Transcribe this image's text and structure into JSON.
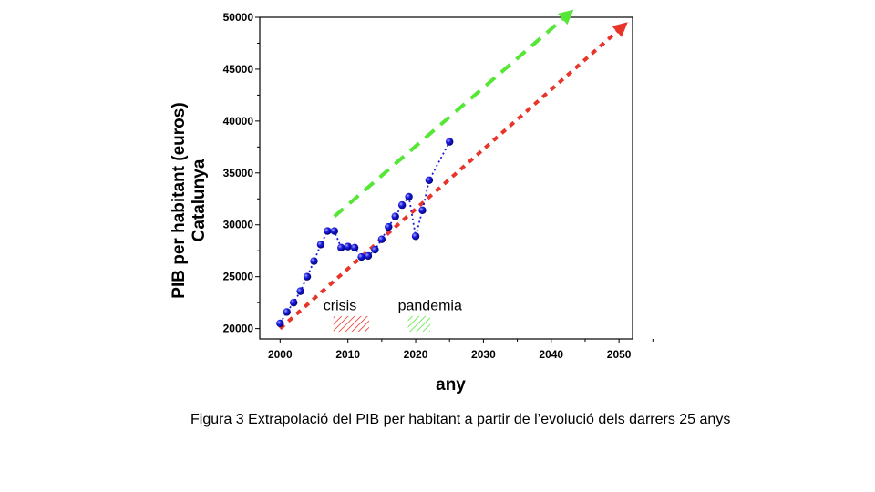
{
  "chart_data": {
    "type": "scatter",
    "title": "",
    "xlabel": "any",
    "ylabel_lines": [
      "PIB per habitant (euros)",
      "Catalunya"
    ],
    "xlim": [
      1997,
      2052
    ],
    "ylim": [
      19000,
      50000
    ],
    "x_ticks": [
      2000,
      2010,
      2020,
      2030,
      2040,
      2050
    ],
    "y_ticks": [
      20000,
      25000,
      30000,
      35000,
      40000,
      45000,
      50000
    ],
    "grid": false,
    "legend": "none",
    "series": [
      {
        "style": "points with dotted line",
        "color": "#1a1adf",
        "x": [
          2000,
          2001,
          2002,
          2003,
          2004,
          2005,
          2006,
          2007,
          2008,
          2009,
          2010,
          2011,
          2012,
          2013,
          2014,
          2015,
          2016,
          2017,
          2018,
          2019,
          2020,
          2021,
          2022,
          2025
        ],
        "y": [
          20500,
          21600,
          22500,
          23600,
          25000,
          26500,
          28100,
          29400,
          29400,
          27800,
          27900,
          27800,
          26900,
          27000,
          27600,
          28600,
          29800,
          30800,
          31900,
          32700,
          28900,
          31400,
          34300,
          38000
        ]
      }
    ],
    "trend_arrows": [
      {
        "color": "#e8352a",
        "style": "dotted",
        "x": [
          2000,
          2050
        ],
        "y": [
          20000,
          48800
        ]
      },
      {
        "color": "#55e636",
        "style": "dashed",
        "x": [
          2008,
          2042
        ],
        "y": [
          30800,
          50000
        ]
      }
    ],
    "annotations": [
      {
        "text": "crisis",
        "x": 2008,
        "y": 22300,
        "hatch_range": [
          2008,
          2013
        ],
        "hatch_color": "#e8352a"
      },
      {
        "text": "pandemia",
        "x": 2019,
        "y": 22300,
        "hatch_range": [
          2019,
          2022
        ],
        "hatch_color": "#55e636"
      }
    ]
  },
  "caption": "Figura 3 Extrapolació del PIB per habitant a partir de l’evolució dels darrers 25 anys"
}
